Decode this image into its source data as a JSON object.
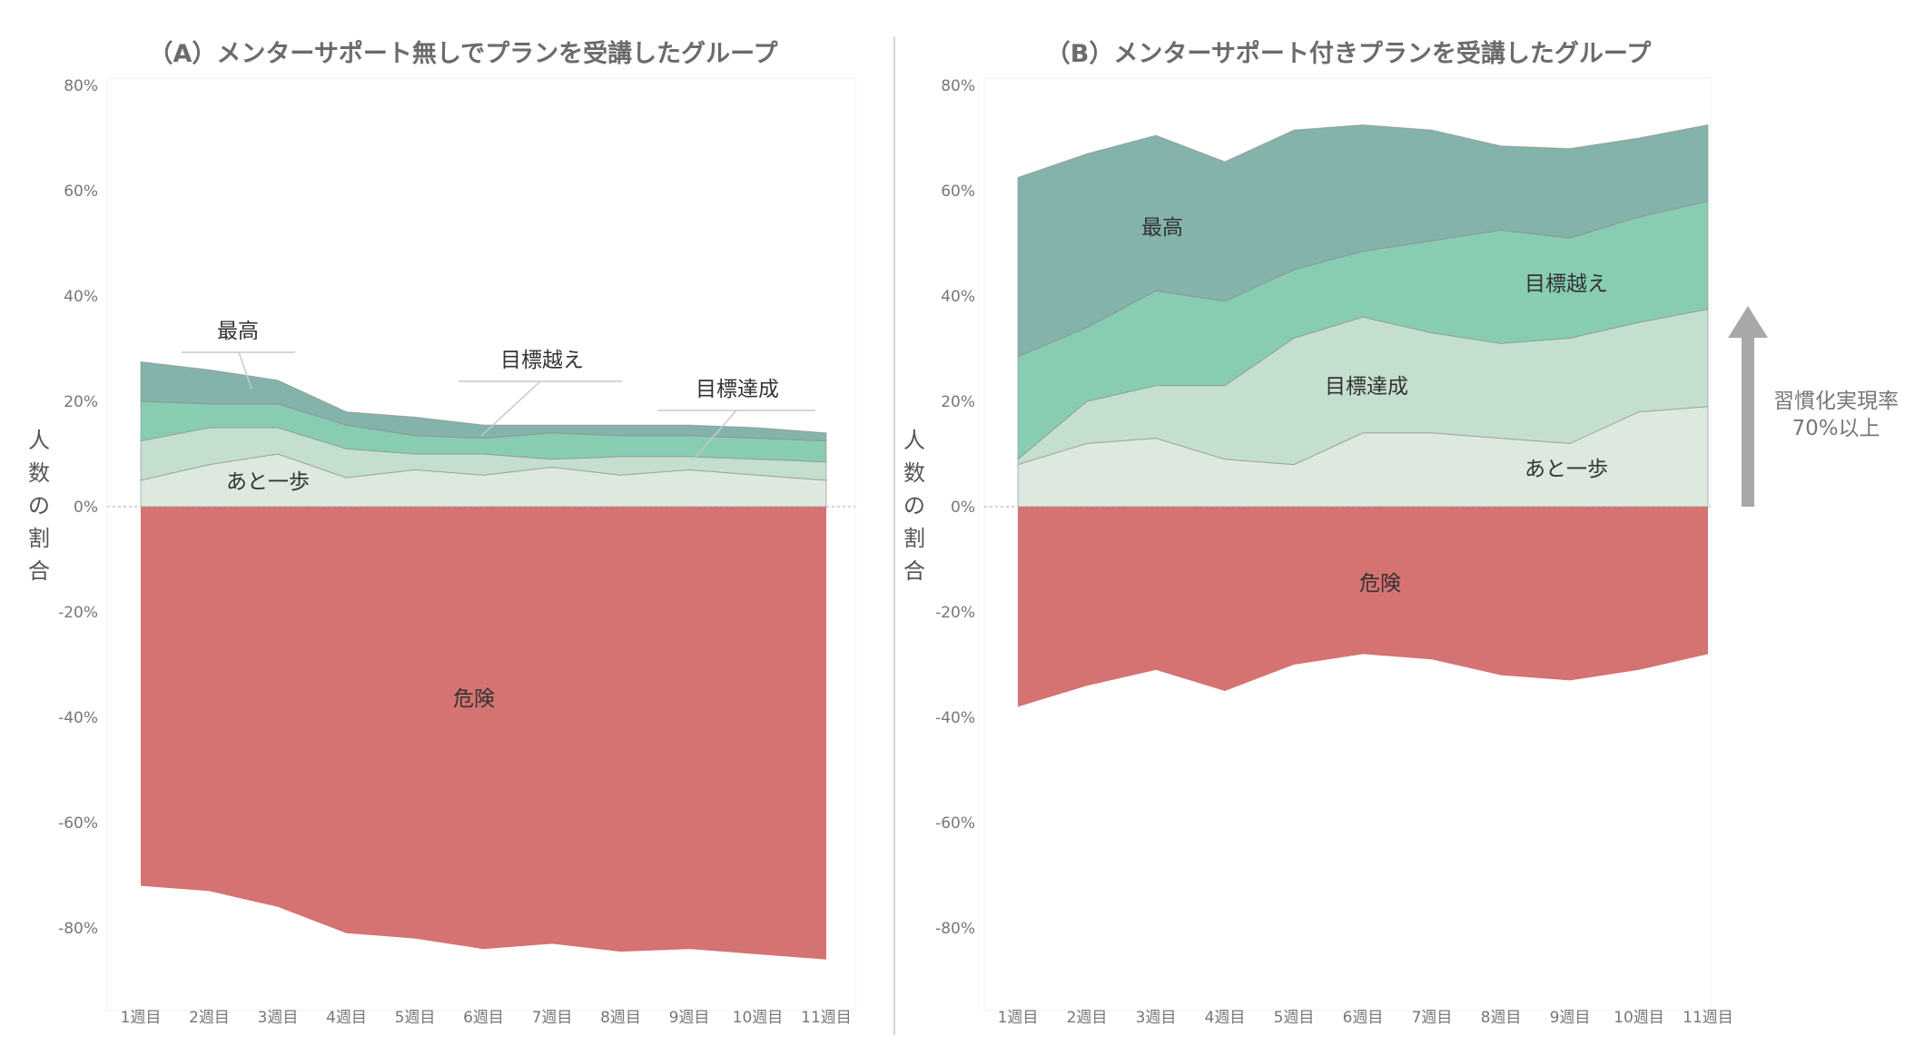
{
  "chart_data": [
    {
      "type": "area",
      "title": "（A）メンターサポート無しでプランを受講したグループ",
      "ylabel": "人数の割合",
      "ylim": [
        -95,
        80
      ],
      "yticks": [
        80,
        60,
        40,
        20,
        0,
        -20,
        -40,
        -60,
        -80
      ],
      "ytick_labels": [
        "80%",
        "60%",
        "40%",
        "20%",
        "0%",
        "-20%",
        "-40%",
        "-60%",
        "-80%"
      ],
      "categories": [
        "1週目",
        "2週目",
        "3週目",
        "4週目",
        "5週目",
        "6週目",
        "7週目",
        "8週目",
        "9週目",
        "10週目",
        "11週目"
      ],
      "series": [
        {
          "name": "あと一歩",
          "color": "#dde8de",
          "values": [
            5,
            8,
            10,
            5.5,
            7,
            6,
            7.5,
            6,
            7,
            6,
            5
          ]
        },
        {
          "name": "目標達成",
          "color": "#c4dfce",
          "values": [
            7.5,
            7,
            5,
            5.5,
            3,
            4,
            1.5,
            3.5,
            2.5,
            3,
            3.5
          ]
        },
        {
          "name": "目標越え",
          "color": "#88cdb2",
          "values": [
            7.5,
            4.5,
            4.5,
            4.5,
            3.5,
            3,
            5,
            4,
            4,
            4,
            4
          ]
        },
        {
          "name": "最高",
          "color": "#84b3ab",
          "values": [
            7.5,
            6.5,
            4.5,
            2.5,
            3.5,
            2.5,
            1.5,
            2,
            2,
            2,
            1.5
          ]
        },
        {
          "name": "危険",
          "color": "#d57272",
          "values": [
            -72,
            -73,
            -76,
            -81,
            -82,
            -84,
            -83,
            -84.5,
            -84,
            -85,
            -86
          ]
        }
      ]
    },
    {
      "type": "area",
      "title": "（B）メンターサポート付きプランを受講したグループ",
      "ylabel": "人数の割合",
      "ylim": [
        -95,
        80
      ],
      "yticks": [
        80,
        60,
        40,
        20,
        0,
        -20,
        -40,
        -60,
        -80
      ],
      "ytick_labels": [
        "80%",
        "60%",
        "40%",
        "20%",
        "0%",
        "-20%",
        "-40%",
        "-60%",
        "-80%"
      ],
      "categories": [
        "1週目",
        "2週目",
        "3週目",
        "4週目",
        "5週目",
        "6週目",
        "7週目",
        "8週目",
        "9週目",
        "10週目",
        "11週目"
      ],
      "series": [
        {
          "name": "あと一歩",
          "color": "#dde8de",
          "values": [
            8,
            12,
            13,
            9,
            8,
            14,
            14,
            13,
            12,
            18,
            19
          ]
        },
        {
          "name": "目標達成",
          "color": "#c4dfce",
          "values": [
            1,
            8,
            10,
            14,
            24,
            22,
            19,
            18,
            20,
            17,
            18.5
          ]
        },
        {
          "name": "目標越え",
          "color": "#88cdb2",
          "values": [
            19.5,
            14,
            18,
            16,
            13,
            12.5,
            17.5,
            21.5,
            19,
            20,
            20.5
          ]
        },
        {
          "name": "最高",
          "color": "#84b3ab",
          "values": [
            34,
            33,
            29.5,
            26.5,
            26.5,
            24,
            21,
            16,
            17,
            15,
            14.5
          ]
        },
        {
          "name": "危険",
          "color": "#d57272",
          "values": [
            -38,
            -34,
            -31,
            -35,
            -30,
            -28,
            -29,
            -32,
            -33,
            -31,
            -28
          ]
        }
      ]
    }
  ],
  "annotation": {
    "label_line1": "習慣化実現率",
    "label_line2": "70%以上",
    "arrow_color": "#a8a8a8"
  }
}
